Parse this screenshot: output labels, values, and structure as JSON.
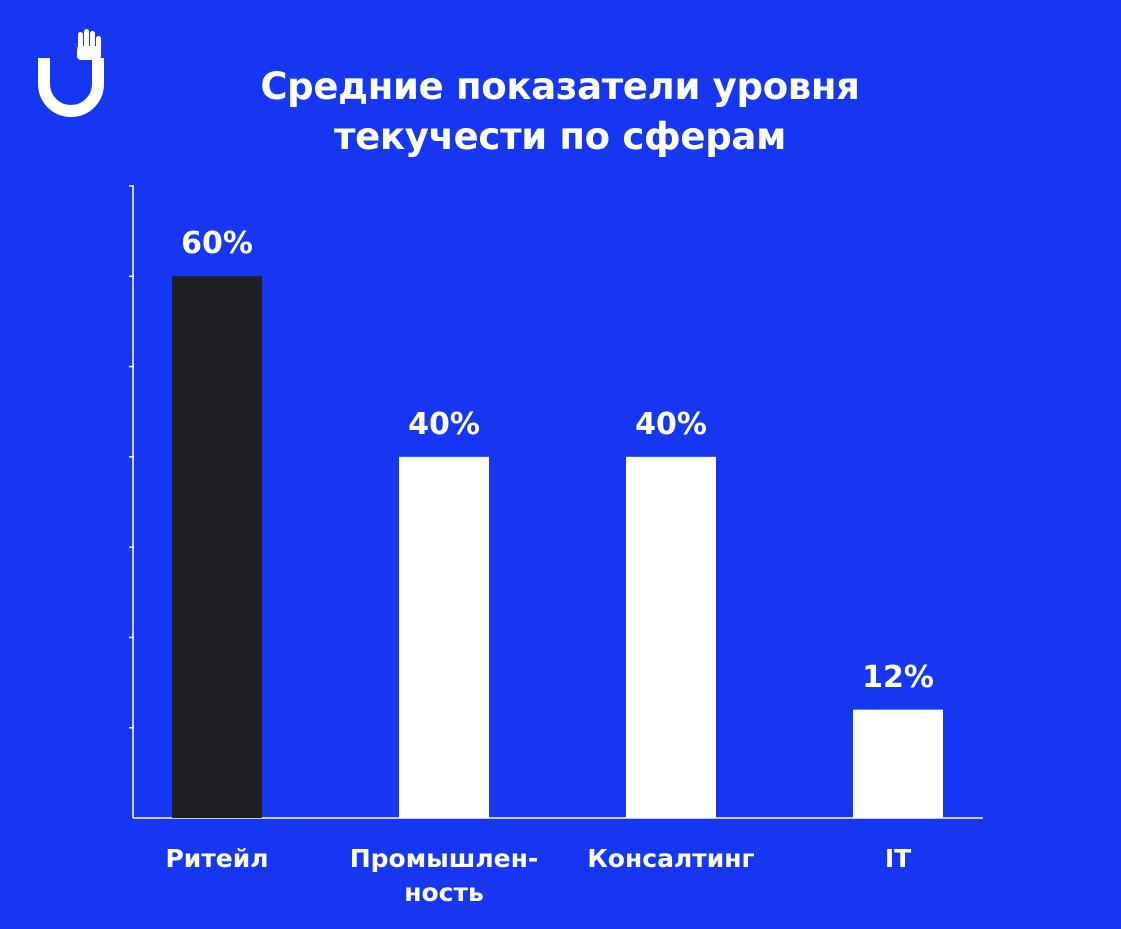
{
  "brand": {
    "logo_icon": "hand-u-logo-icon",
    "background_color": "#1637f2",
    "highlight_bar_color": "#1e2023",
    "default_bar_color": "#ffffff"
  },
  "chart_data": {
    "type": "bar",
    "title_lines": [
      "Средние показатели уровня",
      "текучести по сферам"
    ],
    "categories": [
      "Ритейл",
      "Промышлен-\nность",
      "Консалтинг",
      "IT"
    ],
    "values": [
      60,
      40,
      40,
      12
    ],
    "value_labels": [
      "60%",
      "40%",
      "40%",
      "12%"
    ],
    "highlight_index": 0,
    "ylim": [
      0,
      70
    ],
    "y_tick_step": 10,
    "grid": false,
    "legend": "none"
  }
}
